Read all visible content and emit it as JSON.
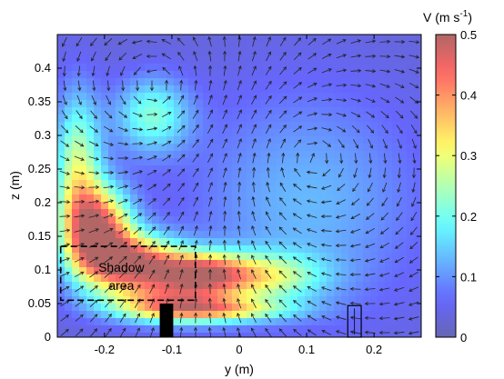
{
  "chart_data": {
    "type": "heatmap",
    "title": "",
    "xlabel": "y (m)",
    "ylabel": "z (m)",
    "xlim": [
      -0.27,
      0.27
    ],
    "ylim": [
      0,
      0.45
    ],
    "x_ticks": [
      -0.2,
      -0.1,
      0,
      0.1,
      0.2
    ],
    "x_tick_labels": [
      "-0.2",
      "-0.1",
      "0",
      "0.1",
      "0.2"
    ],
    "y_ticks": [
      0,
      0.05,
      0.1,
      0.15,
      0.2,
      0.25,
      0.3,
      0.35,
      0.4
    ],
    "y_tick_labels": [
      "0",
      "0.05",
      "0.1",
      "0.15",
      "0.2",
      "0.25",
      "0.3",
      "0.35",
      "0.4"
    ],
    "colorbar": {
      "label_main": "V (m s",
      "label_sup": "-1",
      "label_close": ")",
      "range": [
        0,
        0.5
      ],
      "ticks": [
        0,
        0.1,
        0.2,
        0.3,
        0.4,
        0.5
      ],
      "tick_labels": [
        "0",
        "0.1",
        "0.2",
        "0.3",
        "0.4",
        "0.5"
      ],
      "colormap": "jet",
      "alpha": 0.6
    },
    "background_color": "#7f86ef",
    "speed_field": {
      "description_free": true,
      "blobs": [
        {
          "y": -0.21,
          "z": 0.16,
          "v": 0.42,
          "sy": 0.035,
          "sz": 0.045
        },
        {
          "y": -0.16,
          "z": 0.11,
          "v": 0.4,
          "sy": 0.05,
          "sz": 0.03
        },
        {
          "y": -0.06,
          "z": 0.095,
          "v": 0.38,
          "sy": 0.05,
          "sz": 0.022
        },
        {
          "y": -0.24,
          "z": 0.25,
          "v": 0.24,
          "sy": 0.025,
          "sz": 0.08
        },
        {
          "y": -0.1,
          "z": 0.05,
          "v": 0.28,
          "sy": 0.07,
          "sz": 0.02
        },
        {
          "y": 0.04,
          "z": 0.09,
          "v": 0.2,
          "sy": 0.06,
          "sz": 0.025
        },
        {
          "y": -0.13,
          "z": 0.33,
          "v": 0.18,
          "sy": 0.04,
          "sz": 0.04
        },
        {
          "y": -0.03,
          "z": 0.04,
          "v": 0.2,
          "sy": 0.08,
          "sz": 0.012
        },
        {
          "y": 0.1,
          "z": 0.2,
          "v": 0.1,
          "sy": 0.12,
          "sz": 0.12
        }
      ],
      "vortices": [
        {
          "y": -0.115,
          "z": 0.37,
          "strength": 1.0,
          "sign": 1
        },
        {
          "y": 0.1,
          "z": 0.27,
          "strength": 1.0,
          "sign": -1
        }
      ]
    },
    "annotations": [
      {
        "text_line1": "Shadow",
        "text_line2": "area"
      }
    ],
    "shadow_box": {
      "y0": -0.265,
      "y1": -0.065,
      "z0": 0.055,
      "z1": 0.135
    },
    "obstacle_solid": {
      "y0": -0.118,
      "y1": -0.098,
      "z0": 0.0,
      "z1": 0.05
    },
    "obstacle_outline": {
      "y0": 0.161,
      "y1": 0.181,
      "z0": 0.0,
      "z1": 0.047
    }
  }
}
